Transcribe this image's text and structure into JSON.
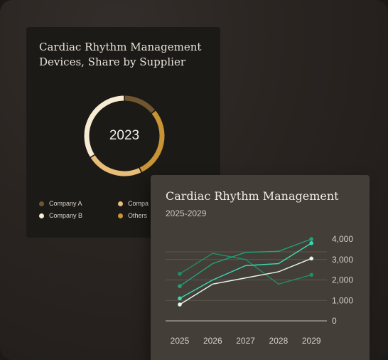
{
  "chart_data": [
    {
      "type": "pie",
      "variant": "donut",
      "title": "Cardiac Rhythm Management Devices, Share by Supplier",
      "center_label": "2023",
      "slices": [
        {
          "name": "Company A",
          "value": 14,
          "color": "#6f5530"
        },
        {
          "name": "Others",
          "value": 29,
          "color": "#c99434"
        },
        {
          "name": "Company C",
          "value": 23,
          "color": "#e7bd78"
        },
        {
          "name": "Company B",
          "value": 34,
          "color": "#f7ecd3"
        }
      ],
      "legend": [
        {
          "label": "Company A",
          "color": "#6f5530"
        },
        {
          "label": "Compa",
          "color": "#e7bd78"
        },
        {
          "label": "Company B",
          "color": "#f7ecd3"
        },
        {
          "label": "Others",
          "color": "#c99434"
        }
      ]
    },
    {
      "type": "line",
      "title": "Cardiac Rhythm Management",
      "subtitle": "2025-2029",
      "x": [
        "2025",
        "2026",
        "2027",
        "2028",
        "2029"
      ],
      "yticks": [
        "4,000",
        "3,000",
        "2,000",
        "1,000",
        "0"
      ],
      "ylim": [
        0,
        4000
      ],
      "series": [
        {
          "values": [
            2300,
            3300,
            3000,
            1800,
            2250
          ],
          "color": "#1f8f67"
        },
        {
          "values": [
            1700,
            2800,
            3350,
            3400,
            4000
          ],
          "color": "#22a27a"
        },
        {
          "values": [
            1100,
            2000,
            2700,
            2800,
            3800
          ],
          "color": "#3cd6b4"
        },
        {
          "values": [
            800,
            1800,
            2100,
            2400,
            3050
          ],
          "color": "#e6f7f0"
        }
      ]
    }
  ]
}
